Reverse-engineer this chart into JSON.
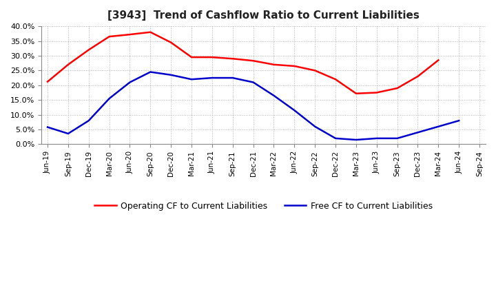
{
  "title": "[3943]  Trend of Cashflow Ratio to Current Liabilities",
  "x_labels": [
    "Jun-19",
    "Sep-19",
    "Dec-19",
    "Mar-20",
    "Jun-20",
    "Sep-20",
    "Dec-20",
    "Mar-21",
    "Jun-21",
    "Sep-21",
    "Dec-21",
    "Mar-22",
    "Jun-22",
    "Sep-22",
    "Dec-22",
    "Mar-23",
    "Jun-23",
    "Sep-23",
    "Dec-23",
    "Mar-24",
    "Jun-24",
    "Sep-24"
  ],
  "operating_cf": [
    0.212,
    0.27,
    0.32,
    0.365,
    0.372,
    0.38,
    0.345,
    0.295,
    0.295,
    0.29,
    0.283,
    0.27,
    0.265,
    0.25,
    0.22,
    0.172,
    0.175,
    0.19,
    0.23,
    0.285,
    null,
    null
  ],
  "free_cf": [
    0.058,
    0.036,
    0.08,
    0.155,
    0.21,
    0.245,
    0.235,
    0.22,
    0.225,
    0.225,
    0.21,
    0.165,
    0.115,
    0.06,
    0.02,
    0.015,
    0.02,
    0.02,
    0.04,
    0.06,
    0.08,
    null
  ],
  "operating_color": "#FF0000",
  "free_color": "#0000CC",
  "ylim": [
    0.0,
    0.4
  ],
  "yticks": [
    0.0,
    0.05,
    0.1,
    0.15,
    0.2,
    0.25,
    0.3,
    0.35,
    0.4
  ],
  "legend_operating": "Operating CF to Current Liabilities",
  "legend_free": "Free CF to Current Liabilities",
  "background_color": "#FFFFFF",
  "grid_color": "#AAAAAA"
}
